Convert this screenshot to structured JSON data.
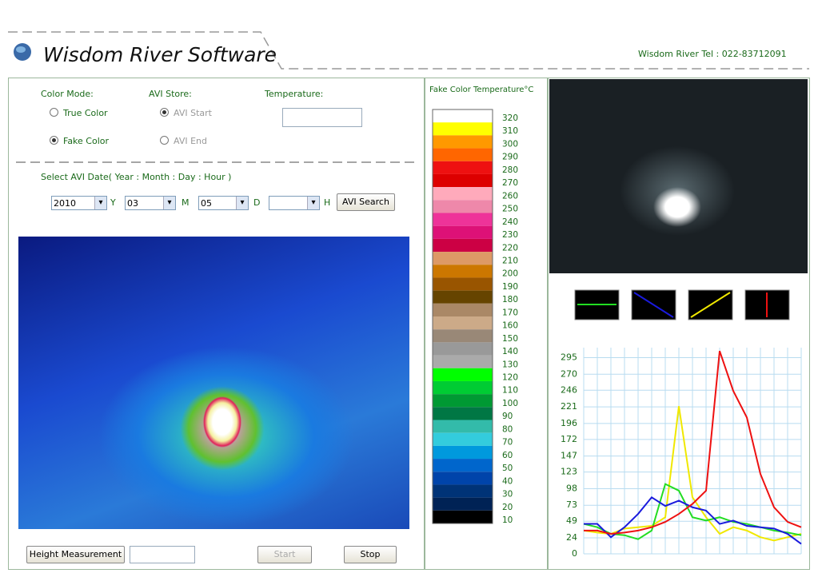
{
  "header": {
    "title": "Wisdom River Software",
    "contact": "Wisdom River Tel : 022-83712091"
  },
  "controls": {
    "color_mode_label": "Color Mode:",
    "true_color": "True Color",
    "fake_color": "Fake Color",
    "avi_store_label": "AVI Store:",
    "avi_start": "AVI Start",
    "avi_end": "AVI End",
    "temperature_label": "Temperature:",
    "date_label": "Select AVI Date( Year : Month : Day : Hour )",
    "year": "2010",
    "year_unit": "Y",
    "month": "03",
    "month_unit": "M",
    "day": "05",
    "day_unit": "D",
    "hour_unit": "H",
    "search": "AVI Search",
    "height_button": "Height Measurement",
    "start": "Start",
    "stop": "Stop"
  },
  "legend": {
    "title": "Fake Color Temperature°C",
    "labels": [
      320,
      310,
      300,
      290,
      280,
      270,
      260,
      250,
      240,
      230,
      220,
      210,
      200,
      190,
      180,
      170,
      160,
      150,
      140,
      130,
      120,
      110,
      100,
      90,
      80,
      70,
      60,
      50,
      40,
      30,
      20,
      10
    ],
    "colors": [
      "#ffffff",
      "#ffff00",
      "#ff9900",
      "#ff6600",
      "#ee1111",
      "#dd0000",
      "#ffaabb",
      "#ee88aa",
      "#ee3399",
      "#dd1177",
      "#cc0044",
      "#dd9966",
      "#cc7700",
      "#995500",
      "#664400",
      "#aa8866",
      "#ccaa88",
      "#998877",
      "#999999",
      "#aaaaaa",
      "#00ff00",
      "#00cc33",
      "#009933",
      "#007744",
      "#33bbaa",
      "#33ccdd",
      "#0099dd",
      "#0066cc",
      "#0044aa",
      "#003377",
      "#002255",
      "#000000"
    ]
  },
  "chart_data": {
    "type": "line",
    "ylim": [
      0,
      310
    ],
    "yticks": [
      0,
      24,
      49,
      73,
      98,
      123,
      147,
      172,
      196,
      221,
      246,
      270,
      295
    ],
    "grid": true,
    "series": [
      {
        "name": "yellow",
        "color": "#f0e800",
        "values": [
          35,
          32,
          30,
          38,
          40,
          42,
          55,
          222,
          85,
          55,
          30,
          40,
          35,
          25,
          20,
          25,
          30
        ]
      },
      {
        "name": "green",
        "color": "#22dd22",
        "values": [
          45,
          40,
          30,
          28,
          22,
          35,
          105,
          95,
          55,
          50,
          55,
          48,
          45,
          40,
          35,
          32,
          28
        ]
      },
      {
        "name": "blue",
        "color": "#1a1add",
        "values": [
          45,
          45,
          25,
          40,
          60,
          85,
          72,
          80,
          70,
          65,
          45,
          50,
          42,
          40,
          38,
          30,
          15
        ]
      },
      {
        "name": "red",
        "color": "#ee1111",
        "values": [
          35,
          35,
          30,
          32,
          35,
          40,
          48,
          60,
          75,
          95,
          305,
          245,
          205,
          120,
          70,
          48,
          40
        ]
      }
    ]
  }
}
